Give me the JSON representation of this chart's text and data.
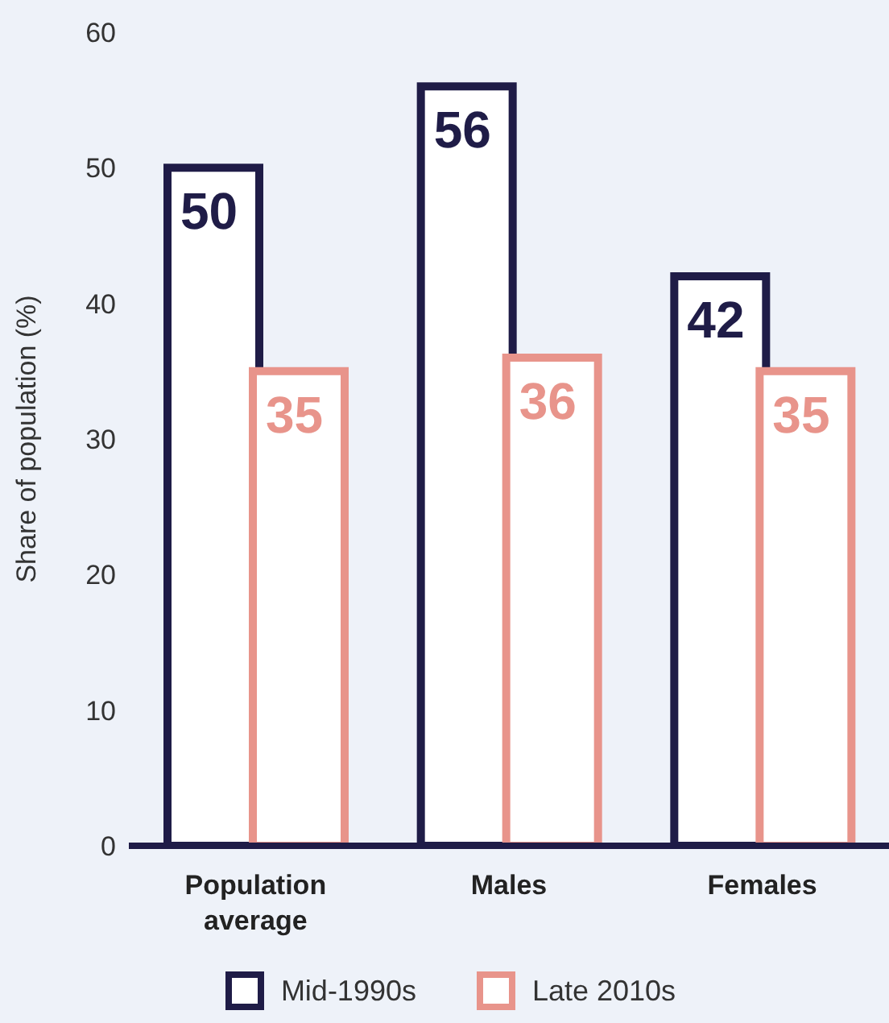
{
  "chart_data": {
    "type": "bar",
    "ylabel": "Share of population (%)",
    "categories": [
      "Population average",
      "Males",
      "Females"
    ],
    "series": [
      {
        "name": "Mid-1990s",
        "color": "#1f1c47",
        "values": [
          50,
          56,
          42
        ]
      },
      {
        "name": "Late 2010s",
        "color": "#e8948b",
        "values": [
          35,
          36,
          35
        ]
      }
    ],
    "ylim": [
      0,
      60
    ],
    "yticks": [
      0,
      10,
      20,
      30,
      40,
      50,
      60
    ],
    "data_labels": true,
    "legend": "bottom",
    "grid": false
  }
}
